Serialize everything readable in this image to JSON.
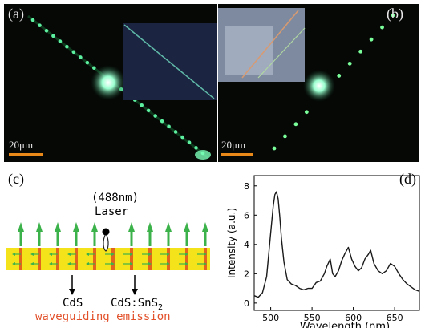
{
  "panel_a": {
    "label": "(a)",
    "scale_text": "20μm"
  },
  "panel_b": {
    "label": "(b)",
    "scale_text": "20μm"
  },
  "panel_c": {
    "label": "(c)",
    "laser_wavelength": "(488nm)",
    "laser_text": "Laser",
    "cds_label": "CdS",
    "cds_sns2_label": "CdS:SnS",
    "cds_sns2_sub": "2",
    "caption": "waveguiding emission",
    "colors": {
      "band": "#f4e21a",
      "arrow": "#3bb24a",
      "segment": "#e0641e",
      "caption": "#e2502a"
    }
  },
  "panel_d": {
    "label": "(d)"
  },
  "chart_data": {
    "type": "line",
    "xlabel": "Wavelength (nm)",
    "ylabel": "Intensity (a.u.)",
    "xlim": [
      480,
      680
    ],
    "ylim": [
      -0.5,
      8.7
    ],
    "xticks": [
      500,
      550,
      600,
      650
    ],
    "yticks": [
      0,
      2,
      4,
      6,
      8
    ],
    "series": [
      {
        "x": [
          480,
          485,
          490,
          495,
          500,
          503,
          505,
          507,
          509,
          511,
          513,
          516,
          520,
          525,
          530,
          535,
          540,
          545,
          550,
          555,
          560,
          565,
          568,
          572,
          575,
          578,
          582,
          586,
          590,
          594,
          598,
          602,
          606,
          610,
          614,
          618,
          621,
          625,
          630,
          635,
          640,
          645,
          650,
          655,
          660,
          665,
          670,
          675,
          680
        ],
        "y": [
          0.5,
          0.4,
          0.7,
          1.8,
          4.8,
          6.6,
          7.4,
          7.6,
          7.1,
          5.9,
          4.4,
          2.8,
          1.6,
          1.3,
          1.2,
          1.0,
          0.9,
          1.0,
          1.0,
          1.4,
          1.5,
          2.0,
          2.5,
          3.0,
          2.0,
          1.8,
          2.2,
          2.9,
          3.4,
          3.8,
          3.0,
          2.5,
          2.2,
          2.4,
          3.0,
          3.3,
          3.6,
          2.7,
          2.2,
          2.0,
          2.2,
          2.7,
          2.5,
          2.0,
          1.6,
          1.3,
          1.1,
          0.9,
          0.8
        ]
      }
    ]
  }
}
